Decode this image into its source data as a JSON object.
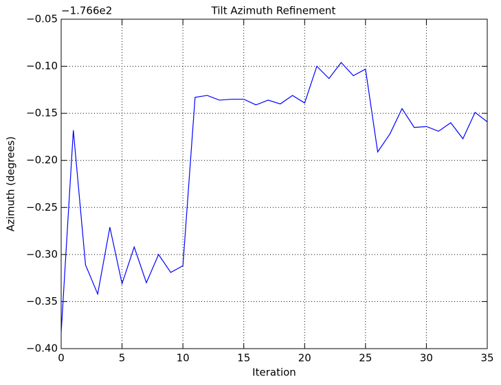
{
  "chart_data": {
    "type": "line",
    "title": "Tilt Azimuth Refinement",
    "x_label": "Iteration",
    "y_label": "Azimuth (degrees)",
    "y_offset_text": "−1.766e2",
    "x": [
      0,
      1,
      2,
      3,
      4,
      5,
      6,
      7,
      8,
      9,
      10,
      11,
      12,
      13,
      14,
      15,
      16,
      17,
      18,
      19,
      20,
      21,
      22,
      23,
      24,
      25,
      26,
      27,
      28,
      29,
      30,
      31,
      32,
      33,
      34,
      35
    ],
    "series": [
      {
        "color": "#0000ff",
        "values": [
          -0.383,
          -0.168,
          -0.311,
          -0.342,
          -0.271,
          -0.331,
          -0.292,
          -0.33,
          -0.3,
          -0.319,
          -0.312,
          -0.133,
          -0.131,
          -0.136,
          -0.135,
          -0.135,
          -0.141,
          -0.136,
          -0.14,
          -0.131,
          -0.139,
          -0.1,
          -0.113,
          -0.096,
          -0.11,
          -0.103,
          -0.191,
          -0.172,
          -0.145,
          -0.165,
          -0.164,
          -0.169,
          -0.16,
          -0.177,
          -0.149,
          -0.159
        ]
      }
    ],
    "xlim": [
      0,
      35
    ],
    "xticks": [
      0,
      5,
      10,
      15,
      20,
      25,
      30,
      35
    ],
    "ylim": [
      -0.4,
      -0.05
    ],
    "yticks": [
      {
        "value": -0.4,
        "label": "−0.40"
      },
      {
        "value": -0.35,
        "label": "−0.35"
      },
      {
        "value": -0.3,
        "label": "−0.30"
      },
      {
        "value": -0.25,
        "label": "−0.25"
      },
      {
        "value": -0.2,
        "label": "−0.20"
      },
      {
        "value": -0.15,
        "label": "−0.15"
      },
      {
        "value": -0.1,
        "label": "−0.10"
      },
      {
        "value": -0.05,
        "label": "−0.05"
      }
    ],
    "grid": true
  }
}
